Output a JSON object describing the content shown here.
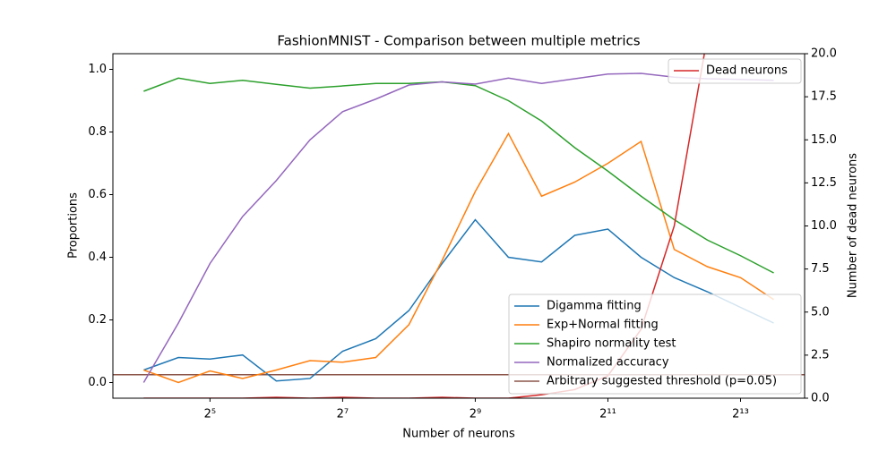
{
  "chart_data": {
    "type": "line",
    "title": "FashionMNIST - Comparison between multiple metrics",
    "x_label": "Number of neurons",
    "y_label": "Proportions",
    "y2_label": "Number of dead neurons",
    "x_scale": "log2",
    "x": [
      16,
      23,
      32,
      45,
      64,
      91,
      128,
      181,
      256,
      362,
      512,
      724,
      1024,
      1448,
      2048,
      2896,
      4096,
      5793,
      8192,
      11585
    ],
    "xlim": [
      11.6,
      16000
    ],
    "xticks": [
      {
        "value": 32,
        "label": "2⁵"
      },
      {
        "value": 128,
        "label": "2⁷"
      },
      {
        "value": 512,
        "label": "2⁹"
      },
      {
        "value": 2048,
        "label": "2¹¹"
      },
      {
        "value": 8192,
        "label": "2¹³"
      }
    ],
    "ylim": [
      -0.05,
      1.05
    ],
    "yticks": [
      {
        "value": 0,
        "label": "0.0"
      },
      0.2,
      0.4,
      0.6,
      0.8,
      {
        "value": 1,
        "label": "1.0"
      }
    ],
    "y2lim": [
      0,
      20
    ],
    "y2ticks": [
      {
        "value": 0,
        "label": "0.0"
      },
      2.5,
      {
        "value": 5,
        "label": "5.0"
      },
      7.5,
      {
        "value": 10,
        "label": "10.0"
      },
      12.5,
      {
        "value": 15,
        "label": "15.0"
      },
      17.5,
      {
        "value": 20,
        "label": "20.0"
      }
    ],
    "series": [
      {
        "name": "Digamma fitting",
        "color": "#1f77b4",
        "values": [
          0.04,
          0.08,
          0.075,
          0.088,
          0.005,
          0.013,
          0.1,
          0.14,
          0.23,
          0.38,
          0.52,
          0.4,
          0.385,
          0.47,
          0.49,
          0.4,
          0.335,
          0.29,
          0.24,
          0.19
        ]
      },
      {
        "name": "Exp+Normal fitting",
        "color": "#ff7f0e",
        "values": [
          0.04,
          0.0,
          0.037,
          0.013,
          0.04,
          0.07,
          0.065,
          0.08,
          0.185,
          0.39,
          0.61,
          0.795,
          0.595,
          0.64,
          0.7,
          0.77,
          0.425,
          0.37,
          0.335,
          0.265
        ]
      },
      {
        "name": "Shapiro normality test",
        "color": "#2ca02c",
        "values": [
          0.93,
          0.972,
          0.955,
          0.965,
          0.952,
          0.94,
          0.947,
          0.955,
          0.955,
          0.96,
          0.948,
          0.9,
          0.835,
          0.75,
          0.675,
          0.595,
          0.52,
          0.455,
          0.405,
          0.35
        ]
      },
      {
        "name": "Normalized accuracy",
        "color": "#9467bd",
        "values": [
          0.0,
          0.19,
          0.38,
          0.53,
          0.645,
          0.775,
          0.865,
          0.905,
          0.95,
          0.96,
          0.953,
          0.972,
          0.955,
          0.97,
          0.985,
          0.987,
          0.975,
          0.97,
          0.968,
          0.965
        ]
      },
      {
        "name": "Dead neurons",
        "color": "#d62728",
        "axis": "y2",
        "values": [
          0,
          0,
          0,
          0,
          0.05,
          0,
          0.05,
          0,
          0,
          0.05,
          0,
          0,
          0.2,
          0.5,
          1.3,
          4.0,
          10.0,
          21,
          null,
          null
        ]
      }
    ],
    "threshold": {
      "name": "Arbitrary suggested threshold (p=0.05)",
      "color": "#8c564b",
      "value": 0.025
    }
  }
}
